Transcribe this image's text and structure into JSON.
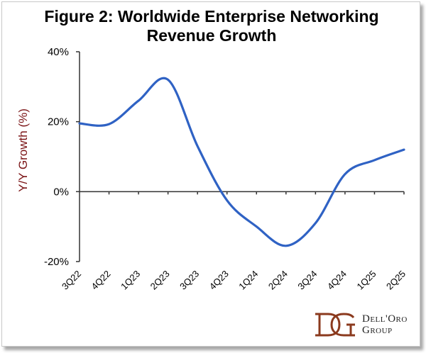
{
  "chart_data": {
    "type": "line",
    "title": "Figure 2: Worldwide Enterprise Networking Revenue Growth",
    "title_lines": [
      "Figure 2: Worldwide Enterprise Networking",
      "Revenue Growth"
    ],
    "xlabel": "",
    "ylabel": "Y/Y Growth (%)",
    "categories": [
      "3Q22",
      "4Q22",
      "1Q23",
      "2Q23",
      "3Q23",
      "4Q23",
      "1Q24",
      "2Q24",
      "3Q24",
      "4Q24",
      "1Q25",
      "2Q25"
    ],
    "series": [
      {
        "name": "Y/Y Growth",
        "color": "#2f62c4",
        "smooth": true,
        "values": [
          19.5,
          19.3,
          26,
          32,
          13,
          -2.5,
          -10,
          -15.5,
          -9,
          5,
          9,
          12
        ]
      }
    ],
    "ylim": [
      -20,
      40
    ],
    "yticks": [
      -20,
      0,
      20,
      40
    ],
    "ytick_labels": [
      "-20%",
      "0%",
      "20%",
      "40%"
    ],
    "grid": false,
    "legend": "none"
  },
  "logo": {
    "mark": "DG",
    "line1": "Dell'Oro",
    "line2": "Group",
    "color": "#8b3a1e"
  }
}
